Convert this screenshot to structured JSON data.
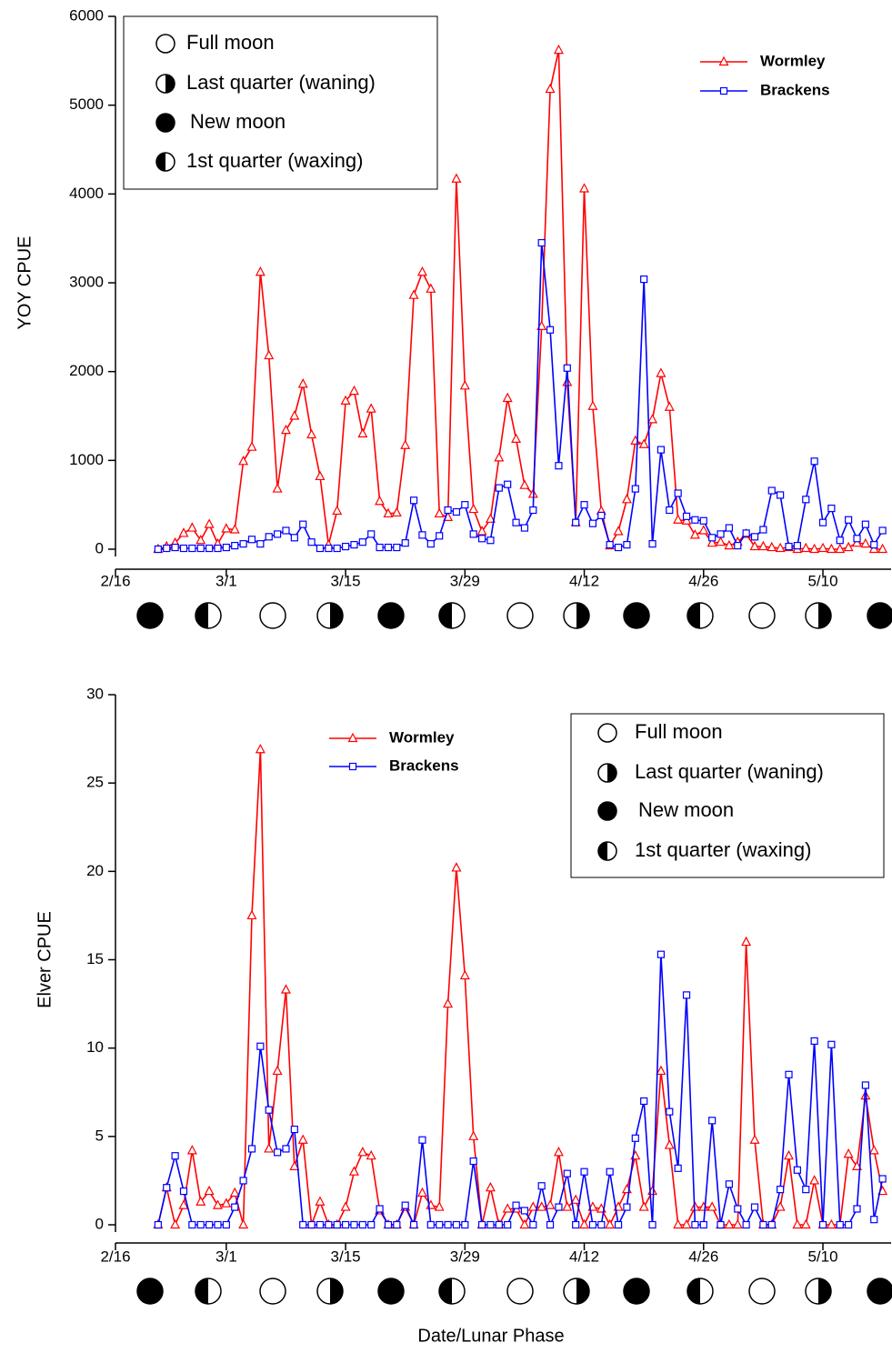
{
  "chart_data": [
    {
      "type": "line",
      "y_label": "YOY CPUE",
      "xlim": [
        47,
        138
      ],
      "xticks": [
        {
          "value": 47,
          "label": "2/16"
        },
        {
          "value": 60,
          "label": "3/1"
        },
        {
          "value": 74,
          "label": "3/15"
        },
        {
          "value": 88,
          "label": "3/29"
        },
        {
          "value": 102,
          "label": "4/12"
        },
        {
          "value": 116,
          "label": "4/26"
        },
        {
          "value": 130,
          "label": "5/10"
        }
      ],
      "ylim": [
        0,
        6000
      ],
      "yticks": [
        0,
        1000,
        2000,
        3000,
        4000,
        5000,
        6000
      ],
      "moon_legend": [
        "Full moon",
        "Last quarter (waning)",
        "New moon",
        "1st quarter (waxing)"
      ],
      "x": [
        52,
        53,
        54,
        55,
        56,
        57,
        58,
        59,
        60,
        61,
        62,
        63,
        64,
        65,
        66,
        67,
        68,
        69,
        70,
        71,
        72,
        73,
        74,
        75,
        76,
        77,
        78,
        79,
        80,
        81,
        82,
        83,
        84,
        85,
        86,
        87,
        88,
        89,
        90,
        91,
        92,
        93,
        94,
        95,
        96,
        97,
        98,
        99,
        100,
        101,
        102,
        103,
        104,
        105,
        106,
        107,
        108,
        109,
        110,
        111,
        112,
        113,
        114,
        115,
        116,
        117,
        118,
        119,
        120,
        121,
        122,
        123,
        124,
        125,
        126,
        127,
        128,
        129,
        130,
        131,
        132,
        133,
        134,
        135,
        136,
        137
      ],
      "series": [
        {
          "name": "Wormley",
          "color": "#ff0000",
          "marker": "triangle",
          "values": [
            0,
            30,
            70,
            180,
            240,
            100,
            280,
            60,
            230,
            220,
            990,
            1150,
            3120,
            2180,
            680,
            1340,
            1500,
            1860,
            1290,
            820,
            50,
            430,
            1670,
            1780,
            1300,
            1580,
            540,
            400,
            410,
            1170,
            2860,
            3120,
            2930,
            400,
            360,
            4170,
            1840,
            450,
            200,
            340,
            1030,
            1700,
            1240,
            720,
            620,
            2510,
            5180,
            5620,
            1880,
            300,
            4060,
            1610,
            430,
            40,
            200,
            560,
            1220,
            1180,
            1460,
            1980,
            1600,
            330,
            320,
            160,
            210,
            70,
            80,
            40,
            80,
            170,
            30,
            30,
            20,
            10,
            20,
            0,
            10,
            0,
            10,
            0,
            0,
            20,
            70,
            60,
            0,
            0
          ]
        },
        {
          "name": "Brackens",
          "color": "#0000ff",
          "marker": "square",
          "values": [
            0,
            10,
            20,
            10,
            10,
            10,
            10,
            10,
            20,
            40,
            60,
            110,
            60,
            140,
            170,
            210,
            130,
            280,
            80,
            10,
            10,
            10,
            30,
            50,
            80,
            170,
            20,
            20,
            20,
            70,
            550,
            160,
            60,
            150,
            440,
            420,
            500,
            170,
            120,
            100,
            690,
            730,
            300,
            240,
            440,
            3450,
            2470,
            940,
            2040,
            300,
            500,
            290,
            380,
            50,
            20,
            50,
            680,
            3040,
            60,
            1120,
            440,
            630,
            370,
            330,
            320,
            130,
            170,
            240,
            40,
            180,
            140,
            220,
            660,
            610,
            30,
            40,
            560,
            990,
            300,
            460,
            100,
            330,
            120,
            280,
            50,
            210
          ]
        }
      ]
    },
    {
      "type": "line",
      "y_label": "Elver CPUE",
      "x_label": "Date/Lunar Phase",
      "xlim": [
        47,
        138
      ],
      "xticks": [
        {
          "value": 47,
          "label": "2/16"
        },
        {
          "value": 60,
          "label": "3/1"
        },
        {
          "value": 74,
          "label": "3/15"
        },
        {
          "value": 88,
          "label": "3/29"
        },
        {
          "value": 102,
          "label": "4/12"
        },
        {
          "value": 116,
          "label": "4/26"
        },
        {
          "value": 130,
          "label": "5/10"
        }
      ],
      "ylim": [
        0,
        30
      ],
      "yticks": [
        0,
        5,
        10,
        15,
        20,
        25,
        30
      ],
      "moon_legend": [
        "Full moon",
        "Last quarter (waning)",
        "New moon",
        "1st quarter (waxing)"
      ],
      "x": [
        52,
        53,
        54,
        55,
        56,
        57,
        58,
        59,
        60,
        61,
        62,
        63,
        64,
        65,
        66,
        67,
        68,
        69,
        70,
        71,
        72,
        73,
        74,
        75,
        76,
        77,
        78,
        79,
        80,
        81,
        82,
        83,
        84,
        85,
        86,
        87,
        88,
        89,
        90,
        91,
        92,
        93,
        94,
        95,
        96,
        97,
        98,
        99,
        100,
        101,
        102,
        103,
        104,
        105,
        106,
        107,
        108,
        109,
        110,
        111,
        112,
        113,
        114,
        115,
        116,
        117,
        118,
        119,
        120,
        121,
        122,
        123,
        124,
        125,
        126,
        127,
        128,
        129,
        130,
        131,
        132,
        133,
        134,
        135,
        136,
        137
      ],
      "series": [
        {
          "name": "Wormley",
          "color": "#ff0000",
          "marker": "triangle",
          "values": [
            0,
            2.1,
            0,
            1.1,
            4.2,
            1.3,
            1.9,
            1.1,
            1.2,
            1.8,
            0,
            17.5,
            26.9,
            4.3,
            8.7,
            13.3,
            3.3,
            4.8,
            0,
            1.3,
            0,
            0,
            1.0,
            3.0,
            4.1,
            3.9,
            0.8,
            0,
            0,
            1.0,
            0,
            1.8,
            1.1,
            1.0,
            12.5,
            20.2,
            14.1,
            5.0,
            0,
            2.1,
            0,
            0.9,
            0.9,
            0,
            1.0,
            1.0,
            1.1,
            4.1,
            1.0,
            1.4,
            0,
            1.0,
            0.9,
            0,
            1.0,
            2.0,
            3.9,
            1.0,
            1.9,
            8.7,
            4.5,
            0,
            0,
            1.0,
            1.0,
            1.0,
            0,
            0,
            0,
            16.0,
            4.8,
            0,
            0,
            1.0,
            3.9,
            0,
            0,
            2.5,
            0,
            0,
            0,
            4.0,
            3.3,
            7.3,
            4.2,
            1.9
          ]
        },
        {
          "name": "Brackens",
          "color": "#0000ff",
          "marker": "square",
          "values": [
            0,
            2.1,
            3.9,
            1.9,
            0,
            0,
            0,
            0,
            0,
            1.0,
            2.5,
            4.3,
            10.1,
            6.5,
            4.1,
            4.3,
            5.4,
            0,
            0,
            0,
            0,
            0,
            0,
            0,
            0,
            0,
            0.9,
            0,
            0,
            1.1,
            0,
            4.8,
            0,
            0,
            0,
            0,
            0,
            3.6,
            0,
            0,
            0,
            0,
            1.1,
            0.8,
            0,
            2.2,
            0,
            1.0,
            2.9,
            0,
            3.0,
            0,
            0,
            3.0,
            0,
            1.0,
            4.9,
            7.0,
            0,
            15.3,
            6.4,
            3.2,
            13.0,
            0,
            0,
            5.9,
            0,
            2.3,
            0.9,
            0,
            1.0,
            0,
            0,
            2.0,
            8.5,
            3.1,
            2.0,
            10.4,
            0,
            10.2,
            0,
            0,
            0.9,
            7.9,
            0.3,
            2.6
          ]
        }
      ]
    }
  ]
}
